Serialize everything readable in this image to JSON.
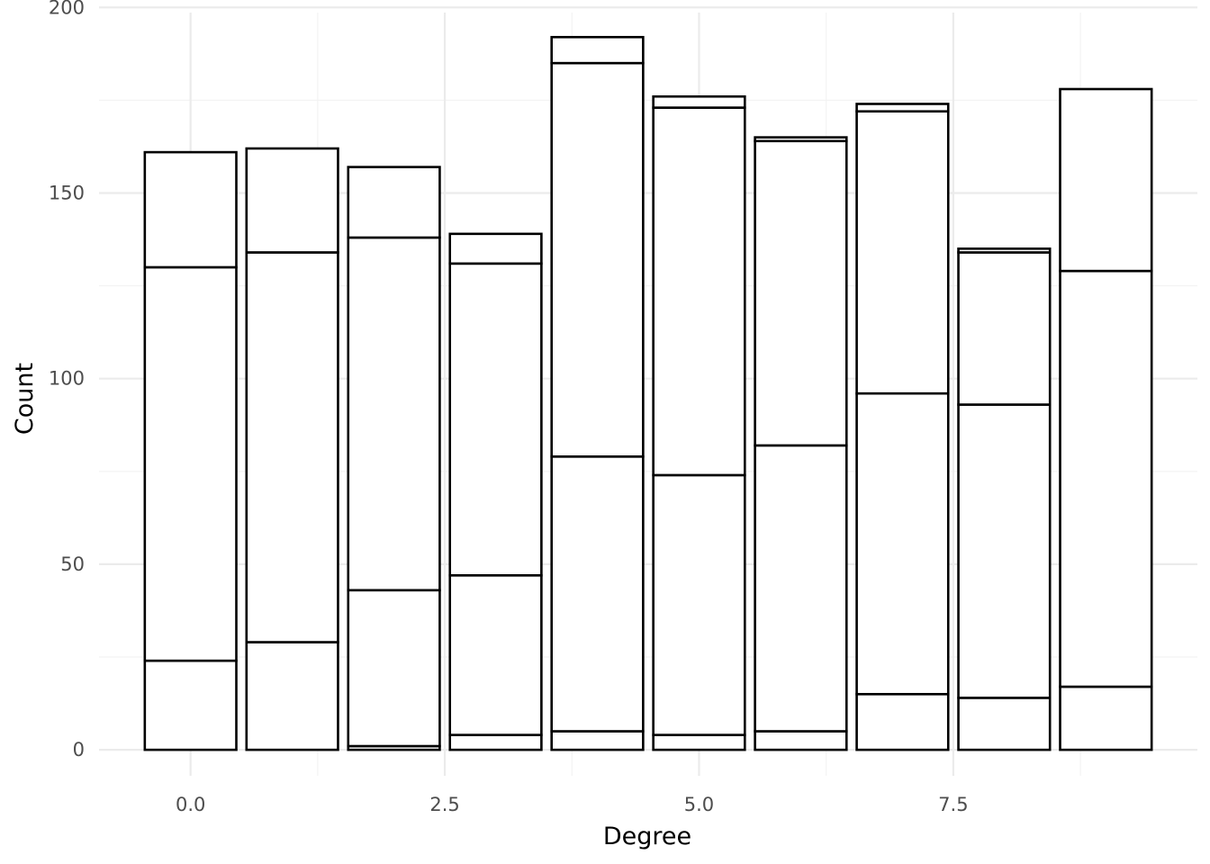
{
  "chart_data": {
    "type": "bar",
    "stacked": true,
    "xlabel": "Degree",
    "ylabel": "Count",
    "xlim": [
      -0.9,
      9.9
    ],
    "ylim": [
      -7,
      202
    ],
    "x_ticks": [
      0,
      2.5,
      5,
      7.5
    ],
    "x_tick_labels": [
      "0.0",
      "2.5",
      "5.0",
      "7.5"
    ],
    "y_ticks": [
      0,
      50,
      100,
      150,
      200
    ],
    "y_tick_labels": [
      "0",
      "50",
      "100",
      "150",
      "200"
    ],
    "grid": true,
    "bar_fill": "#ffffff",
    "bar_outline": "#000000",
    "x": [
      0,
      1,
      2,
      3,
      4,
      5,
      6,
      7,
      8,
      9
    ],
    "stack_boundaries": [
      [
        0,
        24,
        130,
        161
      ],
      [
        0,
        29,
        134,
        162
      ],
      [
        0,
        1,
        43,
        138,
        157
      ],
      [
        0,
        4,
        47,
        131,
        139
      ],
      [
        0,
        5,
        79,
        185,
        192
      ],
      [
        0,
        4,
        74,
        173,
        176
      ],
      [
        0,
        5,
        82,
        164,
        165
      ],
      [
        0,
        15,
        96,
        172,
        174
      ],
      [
        0,
        14,
        93,
        134,
        135
      ],
      [
        0,
        17,
        129,
        178
      ]
    ],
    "totals": [
      161,
      162,
      157,
      139,
      192,
      176,
      165,
      174,
      135,
      178
    ]
  }
}
